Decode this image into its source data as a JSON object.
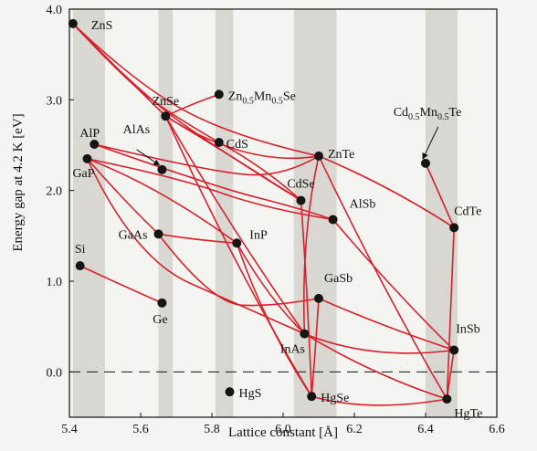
{
  "chart_data": {
    "type": "scatter",
    "xlabel": "Lattice constant [Å]",
    "ylabel": "Energy gap at 4.2 K [eV]",
    "xlim": [
      5.4,
      6.6
    ],
    "ylim": [
      -0.5,
      4.0
    ],
    "x_ticks": [
      "5.4",
      "5.6",
      "5.8",
      "6.0",
      "6.2",
      "6.4",
      "6.6"
    ],
    "y_ticks": [
      "0.0",
      "1.0",
      "2.0",
      "3.0",
      "4.0"
    ],
    "shaded_bands": [
      [
        5.41,
        5.5
      ],
      [
        5.65,
        5.69
      ],
      [
        5.81,
        5.86
      ],
      [
        6.03,
        6.15
      ],
      [
        6.4,
        6.49
      ]
    ],
    "dashed_zero_line": true,
    "line_color": "#d8202c",
    "point_color": "#151515",
    "band_color": "#d9d7d2",
    "points": [
      {
        "name": "ZnS",
        "x": 5.41,
        "y": 3.84
      },
      {
        "name": "ZnSe",
        "x": 5.67,
        "y": 2.82
      },
      {
        "name": "Zn0.5Mn0.5Se",
        "x": 5.82,
        "y": 3.06
      },
      {
        "name": "CdS",
        "x": 5.82,
        "y": 2.53
      },
      {
        "name": "AlP",
        "x": 5.47,
        "y": 2.51
      },
      {
        "name": "AlAs",
        "x": 5.66,
        "y": 2.23
      },
      {
        "name": "GaP",
        "x": 5.45,
        "y": 2.35
      },
      {
        "name": "ZnTe",
        "x": 6.1,
        "y": 2.38
      },
      {
        "name": "Cd0.5Mn0.5Te",
        "x": 6.4,
        "y": 2.3
      },
      {
        "name": "CdSe",
        "x": 6.05,
        "y": 1.89
      },
      {
        "name": "AlSb",
        "x": 6.14,
        "y": 1.68
      },
      {
        "name": "CdTe",
        "x": 6.48,
        "y": 1.59
      },
      {
        "name": "GaAs",
        "x": 5.65,
        "y": 1.52
      },
      {
        "name": "InP",
        "x": 5.87,
        "y": 1.42
      },
      {
        "name": "Si",
        "x": 5.43,
        "y": 1.17
      },
      {
        "name": "Ge",
        "x": 5.66,
        "y": 0.76
      },
      {
        "name": "GaSb",
        "x": 6.1,
        "y": 0.81
      },
      {
        "name": "InAs",
        "x": 6.06,
        "y": 0.42
      },
      {
        "name": "InSb",
        "x": 6.48,
        "y": 0.24
      },
      {
        "name": "HgS",
        "x": 5.85,
        "y": -0.22
      },
      {
        "name": "HgSe",
        "x": 6.08,
        "y": -0.27
      },
      {
        "name": "HgTe",
        "x": 6.46,
        "y": -0.3
      }
    ],
    "curves": [
      {
        "from": "ZnS",
        "to": "ZnSe",
        "via": [
          [
            5.54,
            3.32
          ]
        ]
      },
      {
        "from": "ZnS",
        "to": "CdS",
        "via": [
          [
            5.55,
            3.25
          ],
          [
            5.68,
            2.85
          ]
        ]
      },
      {
        "from": "ZnS",
        "to": "ZnTe",
        "via": [
          [
            5.58,
            3.2
          ],
          [
            5.85,
            2.6
          ]
        ]
      },
      {
        "from": "ZnS",
        "to": "CdSe",
        "via": [
          [
            5.6,
            3.05
          ],
          [
            5.88,
            2.3
          ]
        ]
      },
      {
        "from": "ZnSe",
        "to": "Zn0.5Mn0.5Se",
        "via": [
          [
            5.74,
            2.95
          ]
        ]
      },
      {
        "from": "ZnSe",
        "to": "ZnTe",
        "via": [
          [
            5.9,
            2.25
          ]
        ]
      },
      {
        "from": "ZnSe",
        "to": "CdSe",
        "via": [
          [
            5.86,
            2.37
          ]
        ]
      },
      {
        "from": "ZnSe",
        "to": "InAs",
        "via": [
          [
            5.85,
            1.6
          ]
        ]
      },
      {
        "from": "ZnSe",
        "to": "HgSe",
        "via": [
          [
            5.87,
            1.1
          ]
        ]
      },
      {
        "from": "CdS",
        "to": "CdSe",
        "via": [
          [
            5.95,
            2.25
          ]
        ]
      },
      {
        "from": "ZnTe",
        "to": "CdTe",
        "via": [
          [
            6.3,
            2.05
          ]
        ]
      },
      {
        "from": "ZnTe",
        "to": "HgTe",
        "via": [
          [
            6.28,
            0.9
          ]
        ]
      },
      {
        "from": "ZnTe",
        "to": "InAs",
        "via": [
          [
            6.05,
            1.5
          ]
        ]
      },
      {
        "from": "CdSe",
        "to": "HgSe",
        "via": [
          [
            6.07,
            0.8
          ]
        ]
      },
      {
        "from": "CdTe",
        "to": "HgTe",
        "via": [
          [
            6.47,
            0.7
          ]
        ]
      },
      {
        "from": "Cd0.5Mn0.5Te",
        "to": "CdTe",
        "via": [
          [
            6.44,
            1.95
          ]
        ]
      },
      {
        "from": "AlP",
        "to": "ZnTe",
        "via": [
          [
            5.8,
            2.2
          ],
          [
            6.0,
            2.15
          ]
        ]
      },
      {
        "from": "AlP",
        "to": "AlSb",
        "via": [
          [
            5.8,
            2.05
          ],
          [
            6.05,
            1.8
          ]
        ]
      },
      {
        "from": "GaP",
        "to": "AlSb",
        "via": [
          [
            5.7,
            2.15
          ],
          [
            5.95,
            1.8
          ]
        ]
      },
      {
        "from": "GaP",
        "to": "InP",
        "via": [
          [
            5.65,
            2.05
          ]
        ]
      },
      {
        "from": "GaP",
        "to": "GaAs",
        "via": [
          [
            5.55,
            1.9
          ]
        ]
      },
      {
        "from": "GaP",
        "to": "InAs",
        "via": [
          [
            5.58,
            1.25
          ],
          [
            5.9,
            0.7
          ]
        ]
      },
      {
        "from": "AlSb",
        "to": "InSb",
        "via": [
          [
            6.32,
            0.85
          ]
        ]
      },
      {
        "from": "GaAs",
        "to": "InP",
        "via": [
          [
            5.76,
            1.45
          ]
        ]
      },
      {
        "from": "InP",
        "to": "InAs",
        "via": [
          [
            5.96,
            0.8
          ]
        ]
      },
      {
        "from": "InP",
        "to": "HgSe",
        "via": [
          [
            5.95,
            0.5
          ]
        ]
      },
      {
        "from": "GaAs",
        "to": "GaSb",
        "via": [
          [
            5.8,
            0.75
          ],
          [
            5.97,
            0.72
          ]
        ]
      },
      {
        "from": "Si",
        "to": "Ge",
        "via": [
          [
            5.55,
            0.95
          ]
        ]
      },
      {
        "from": "GaSb",
        "to": "InSb",
        "via": [
          [
            6.28,
            0.5
          ]
        ]
      },
      {
        "from": "InAs",
        "to": "InSb",
        "via": [
          [
            6.25,
            0.12
          ]
        ]
      },
      {
        "from": "InAs",
        "to": "HgTe",
        "via": [
          [
            6.26,
            -0.05
          ]
        ]
      },
      {
        "from": "GaSb",
        "to": "HgSe",
        "via": [
          [
            6.09,
            0.2
          ]
        ]
      },
      {
        "from": "HgSe",
        "to": "HgTe",
        "via": [
          [
            6.24,
            -0.45
          ]
        ]
      },
      {
        "from": "InSb",
        "to": "HgTe",
        "via": [
          [
            6.47,
            0.0
          ]
        ]
      }
    ],
    "annotations": [
      {
        "label": "AlAs",
        "target": "AlAs"
      },
      {
        "label": "Cd0.5Mn0.5Te",
        "target": "Cd0.5Mn0.5Te"
      }
    ]
  }
}
